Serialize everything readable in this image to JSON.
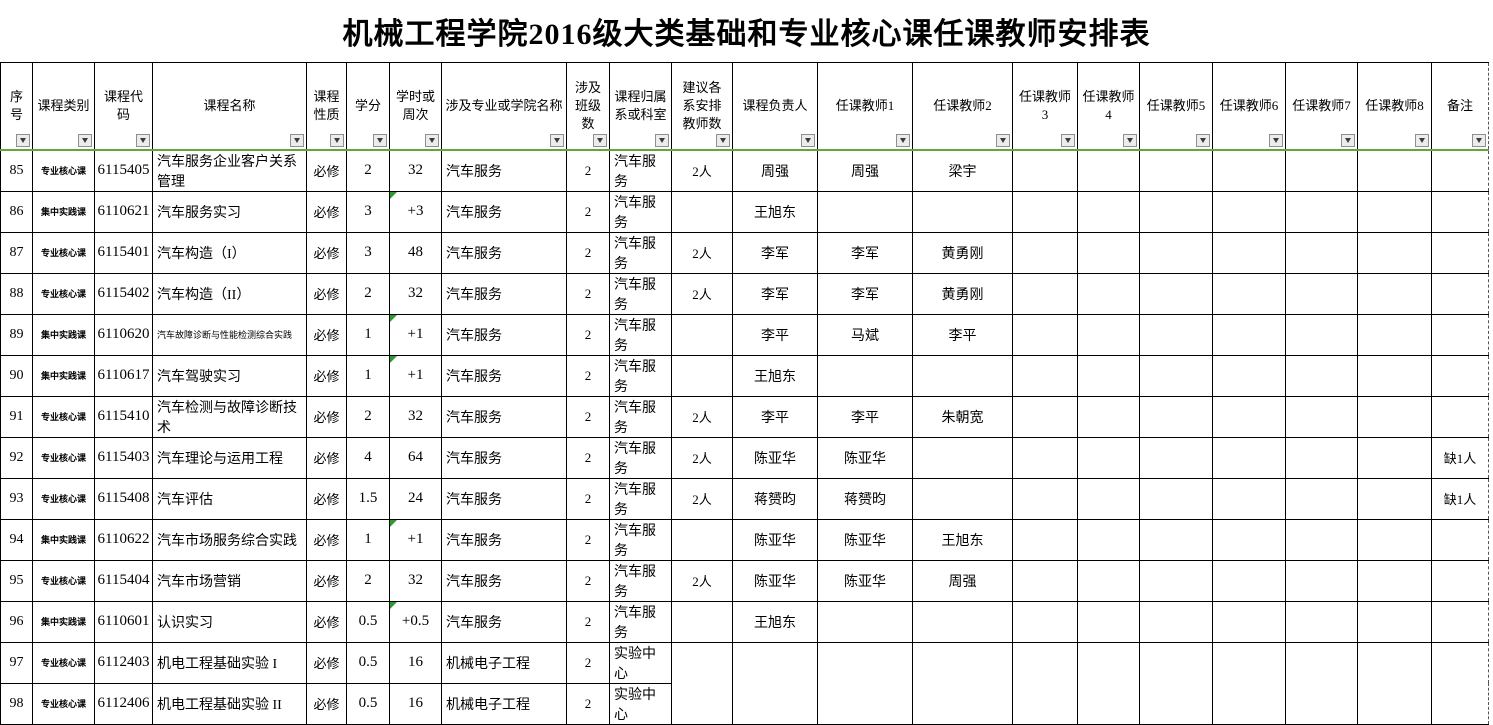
{
  "title": "机械工程学院2016级大类基础和专业核心课任课教师安排表",
  "colors": {
    "freeze_line": "#62A73B",
    "error_flag": "#2E9B2E",
    "grid": "#000000"
  },
  "icons": {
    "filter_dropdown_icon": "▼",
    "error_flag_icon": "green-corner-triangle"
  },
  "columns": [
    {
      "key": "seq",
      "label": "序号"
    },
    {
      "key": "category",
      "label": "课程类别"
    },
    {
      "key": "code",
      "label": "课程代码"
    },
    {
      "key": "name",
      "label": "课程名称"
    },
    {
      "key": "nature",
      "label": "课程性质"
    },
    {
      "key": "credits",
      "label": "学分"
    },
    {
      "key": "hours",
      "label": "学时或周次"
    },
    {
      "key": "major",
      "label": "涉及专业或学院名称"
    },
    {
      "key": "classes",
      "label": "涉及班级数"
    },
    {
      "key": "dept",
      "label": "课程归属系或科室"
    },
    {
      "key": "suggest",
      "label": "建议各系安排教师数"
    },
    {
      "key": "leader",
      "label": "课程负责人"
    },
    {
      "key": "t1",
      "label": "任课教师1"
    },
    {
      "key": "t2",
      "label": "任课教师2"
    },
    {
      "key": "t3",
      "label": "任课教师3"
    },
    {
      "key": "t4",
      "label": "任课教师4"
    },
    {
      "key": "t5",
      "label": "任课教师5"
    },
    {
      "key": "t6",
      "label": "任课教师6"
    },
    {
      "key": "t7",
      "label": "任课教师7"
    },
    {
      "key": "t8",
      "label": "任课教师8"
    },
    {
      "key": "note",
      "label": "备注"
    }
  ],
  "rows": [
    {
      "seq": "85",
      "category": "专业核心课",
      "code": "6115405",
      "name": "汽车服务企业客户关系管理",
      "nature": "必修",
      "credits": "2",
      "hours": "32",
      "hours_flag": false,
      "major": "汽车服务",
      "classes": "2",
      "dept": "汽车服务",
      "suggest": "2人",
      "leader": "周强",
      "t1": "周强",
      "t2": "梁宇",
      "t3": "",
      "t4": "",
      "t5": "",
      "t6": "",
      "t7": "",
      "t8": "",
      "note": ""
    },
    {
      "seq": "86",
      "category": "集中实践课",
      "code": "6110621",
      "name": "汽车服务实习",
      "nature": "必修",
      "credits": "3",
      "hours": "+3",
      "hours_flag": true,
      "major": "汽车服务",
      "classes": "2",
      "dept": "汽车服务",
      "suggest": "",
      "leader": "王旭东",
      "t1": "",
      "t2": "",
      "t3": "",
      "t4": "",
      "t5": "",
      "t6": "",
      "t7": "",
      "t8": "",
      "note": ""
    },
    {
      "seq": "87",
      "category": "专业核心课",
      "code": "6115401",
      "name": "汽车构造（I）",
      "nature": "必修",
      "credits": "3",
      "hours": "48",
      "hours_flag": false,
      "major": "汽车服务",
      "classes": "2",
      "dept": "汽车服务",
      "suggest": "2人",
      "leader": "李军",
      "t1": "李军",
      "t2": "黄勇刚",
      "t3": "",
      "t4": "",
      "t5": "",
      "t6": "",
      "t7": "",
      "t8": "",
      "note": ""
    },
    {
      "seq": "88",
      "category": "专业核心课",
      "code": "6115402",
      "name": "汽车构造（II）",
      "nature": "必修",
      "credits": "2",
      "hours": "32",
      "hours_flag": false,
      "major": "汽车服务",
      "classes": "2",
      "dept": "汽车服务",
      "suggest": "2人",
      "leader": "李军",
      "t1": "李军",
      "t2": "黄勇刚",
      "t3": "",
      "t4": "",
      "t5": "",
      "t6": "",
      "t7": "",
      "t8": "",
      "note": ""
    },
    {
      "seq": "89",
      "category": "集中实践课",
      "code": "6110620",
      "name": "汽车故障诊断与性能检测综合实践",
      "name_small": true,
      "nature": "必修",
      "credits": "1",
      "hours": "+1",
      "hours_flag": true,
      "major": "汽车服务",
      "classes": "2",
      "dept": "汽车服务",
      "suggest": "",
      "leader": "李平",
      "t1": "马斌",
      "t2": "李平",
      "t3": "",
      "t4": "",
      "t5": "",
      "t6": "",
      "t7": "",
      "t8": "",
      "note": ""
    },
    {
      "seq": "90",
      "category": "集中实践课",
      "code": "6110617",
      "name": "汽车驾驶实习",
      "nature": "必修",
      "credits": "1",
      "hours": "+1",
      "hours_flag": true,
      "major": "汽车服务",
      "classes": "2",
      "dept": "汽车服务",
      "suggest": "",
      "leader": "王旭东",
      "t1": "",
      "t2": "",
      "t3": "",
      "t4": "",
      "t5": "",
      "t6": "",
      "t7": "",
      "t8": "",
      "note": ""
    },
    {
      "seq": "91",
      "category": "专业核心课",
      "code": "6115410",
      "name": "汽车检测与故障诊断技术",
      "nature": "必修",
      "credits": "2",
      "hours": "32",
      "hours_flag": false,
      "major": "汽车服务",
      "classes": "2",
      "dept": "汽车服务",
      "suggest": "2人",
      "leader": "李平",
      "t1": "李平",
      "t2": "朱朝宽",
      "t3": "",
      "t4": "",
      "t5": "",
      "t6": "",
      "t7": "",
      "t8": "",
      "note": ""
    },
    {
      "seq": "92",
      "category": "专业核心课",
      "code": "6115403",
      "name": "汽车理论与运用工程",
      "nature": "必修",
      "credits": "4",
      "hours": "64",
      "hours_flag": false,
      "major": "汽车服务",
      "classes": "2",
      "dept": "汽车服务",
      "suggest": "2人",
      "leader": "陈亚华",
      "t1": "陈亚华",
      "t2": "",
      "t3": "",
      "t4": "",
      "t5": "",
      "t6": "",
      "t7": "",
      "t8": "",
      "note": "缺1人"
    },
    {
      "seq": "93",
      "category": "专业核心课",
      "code": "6115408",
      "name": "汽车评估",
      "nature": "必修",
      "credits": "1.5",
      "hours": "24",
      "hours_flag": false,
      "major": "汽车服务",
      "classes": "2",
      "dept": "汽车服务",
      "suggest": "2人",
      "leader": "蒋赟昀",
      "t1": "蒋赟昀",
      "t2": "",
      "t3": "",
      "t4": "",
      "t5": "",
      "t6": "",
      "t7": "",
      "t8": "",
      "note": "缺1人"
    },
    {
      "seq": "94",
      "category": "集中实践课",
      "code": "6110622",
      "name": "汽车市场服务综合实践",
      "nature": "必修",
      "credits": "1",
      "hours": "+1",
      "hours_flag": true,
      "major": "汽车服务",
      "classes": "2",
      "dept": "汽车服务",
      "suggest": "",
      "leader": "陈亚华",
      "t1": "陈亚华",
      "t2": "王旭东",
      "t3": "",
      "t4": "",
      "t5": "",
      "t6": "",
      "t7": "",
      "t8": "",
      "note": ""
    },
    {
      "seq": "95",
      "category": "专业核心课",
      "code": "6115404",
      "name": "汽车市场营销",
      "nature": "必修",
      "credits": "2",
      "hours": "32",
      "hours_flag": false,
      "major": "汽车服务",
      "classes": "2",
      "dept": "汽车服务",
      "suggest": "2人",
      "leader": "陈亚华",
      "t1": "陈亚华",
      "t2": "周强",
      "t3": "",
      "t4": "",
      "t5": "",
      "t6": "",
      "t7": "",
      "t8": "",
      "note": ""
    },
    {
      "seq": "96",
      "category": "集中实践课",
      "code": "6110601",
      "name": "认识实习",
      "nature": "必修",
      "credits": "0.5",
      "hours": "+0.5",
      "hours_flag": true,
      "major": "汽车服务",
      "classes": "2",
      "dept": "汽车服务",
      "suggest": "",
      "leader": "王旭东",
      "t1": "",
      "t2": "",
      "t3": "",
      "t4": "",
      "t5": "",
      "t6": "",
      "t7": "",
      "t8": "",
      "note": ""
    },
    {
      "seq": "97",
      "category": "专业核心课",
      "code": "6112403",
      "name": "机电工程基础实验 I",
      "nature": "必修",
      "credits": "0.5",
      "hours": "16",
      "hours_flag": false,
      "major": "机械电子工程",
      "classes": "2",
      "dept": "实验中心",
      "suggest": "",
      "leader": "",
      "t1": "",
      "t2": "",
      "t3": "",
      "t4": "",
      "t5": "",
      "t6": "",
      "t7": "",
      "t8": "",
      "note": ""
    },
    {
      "seq": "98",
      "category": "专业核心课",
      "code": "6112406",
      "name": "机电工程基础实验 II",
      "nature": "必修",
      "credits": "0.5",
      "hours": "16",
      "hours_flag": false,
      "major": "机械电子工程",
      "classes": "2",
      "dept": "实验中心",
      "suggest": "",
      "leader": "",
      "t1": "",
      "t2": "",
      "t3": "",
      "t4": "",
      "t5": "",
      "t6": "",
      "t7": "",
      "t8": "",
      "note": ""
    }
  ],
  "merges": [
    {
      "start_row_seq": "97",
      "row_count": 2,
      "from_col": "suggest",
      "to_col": "note"
    }
  ]
}
